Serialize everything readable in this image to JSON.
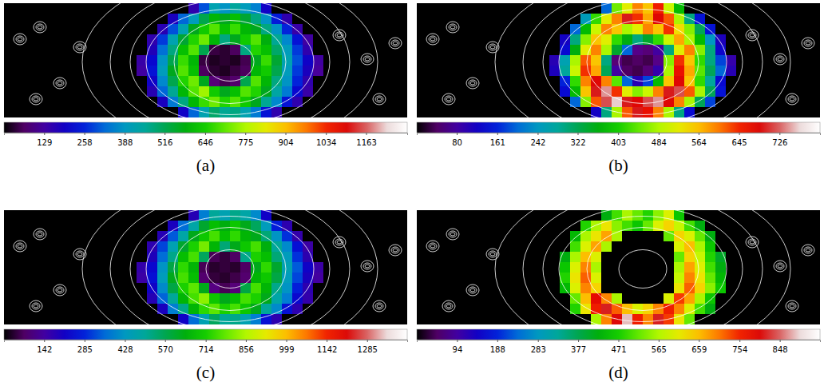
{
  "chart_data": [
    {
      "type": "heatmap",
      "title": "(a)",
      "color_range": [
        0,
        1295
      ],
      "color_ticks": [
        129,
        258,
        388,
        516,
        646,
        775,
        904,
        1034,
        1163
      ],
      "cells": [
        [
          null,
          null,
          null,
          null,
          null,
          150,
          300,
          420,
          380,
          450,
          400,
          350,
          200,
          null,
          null,
          null,
          null,
          null
        ],
        [
          null,
          null,
          null,
          180,
          320,
          400,
          520,
          600,
          560,
          620,
          540,
          480,
          380,
          250,
          150,
          null,
          null,
          null
        ],
        [
          null,
          null,
          160,
          300,
          420,
          560,
          640,
          700,
          620,
          680,
          600,
          560,
          480,
          380,
          260,
          140,
          null,
          null
        ],
        [
          null,
          150,
          280,
          420,
          540,
          660,
          720,
          600,
          480,
          560,
          640,
          700,
          580,
          460,
          360,
          240,
          130,
          null
        ],
        [
          null,
          170,
          330,
          480,
          620,
          700,
          520,
          40,
          30,
          60,
          480,
          660,
          620,
          500,
          400,
          280,
          150,
          null
        ],
        [
          140,
          220,
          380,
          520,
          680,
          600,
          40,
          20,
          30,
          20,
          50,
          560,
          680,
          540,
          420,
          300,
          200,
          130
        ],
        [
          130,
          240,
          400,
          560,
          700,
          620,
          60,
          30,
          20,
          40,
          60,
          600,
          640,
          520,
          400,
          280,
          180,
          120
        ],
        [
          null,
          200,
          360,
          520,
          660,
          720,
          560,
          80,
          50,
          70,
          520,
          700,
          600,
          480,
          380,
          260,
          150,
          null
        ],
        [
          null,
          160,
          320,
          460,
          600,
          700,
          760,
          640,
          560,
          620,
          700,
          660,
          560,
          440,
          340,
          220,
          140,
          null
        ],
        [
          null,
          null,
          180,
          340,
          480,
          600,
          680,
          720,
          660,
          700,
          640,
          560,
          460,
          360,
          240,
          150,
          null,
          null
        ],
        [
          null,
          null,
          null,
          null,
          200,
          320,
          420,
          500,
          460,
          480,
          420,
          340,
          240,
          150,
          null,
          null,
          null,
          null
        ]
      ]
    },
    {
      "type": "heatmap",
      "title": "(b)",
      "color_range": [
        0,
        807
      ],
      "color_ticks": [
        80,
        161,
        242,
        322,
        403,
        484,
        564,
        645,
        726
      ],
      "cells": [
        [
          null,
          null,
          null,
          null,
          null,
          200,
          450,
          520,
          600,
          560,
          650,
          500,
          380,
          null,
          null,
          null,
          null,
          null
        ],
        [
          null,
          null,
          null,
          250,
          420,
          520,
          600,
          700,
          640,
          580,
          680,
          620,
          480,
          300,
          150,
          null,
          null,
          null
        ],
        [
          null,
          null,
          200,
          380,
          500,
          600,
          560,
          480,
          520,
          600,
          560,
          640,
          540,
          460,
          320,
          150,
          null,
          null
        ],
        [
          null,
          120,
          300,
          460,
          560,
          520,
          420,
          360,
          300,
          340,
          420,
          500,
          580,
          480,
          380,
          240,
          110,
          null
        ],
        [
          null,
          140,
          360,
          520,
          600,
          480,
          340,
          200,
          60,
          50,
          80,
          300,
          520,
          600,
          460,
          300,
          130,
          null
        ],
        [
          100,
          260,
          480,
          620,
          560,
          300,
          50,
          30,
          40,
          30,
          60,
          460,
          640,
          560,
          420,
          300,
          180,
          90
        ],
        [
          110,
          280,
          500,
          640,
          580,
          320,
          80,
          40,
          30,
          50,
          90,
          480,
          660,
          580,
          440,
          320,
          200,
          100
        ],
        [
          null,
          160,
          420,
          600,
          680,
          600,
          440,
          200,
          100,
          180,
          380,
          560,
          680,
          560,
          420,
          280,
          140,
          null
        ],
        [
          null,
          140,
          380,
          560,
          700,
          740,
          640,
          520,
          460,
          500,
          600,
          700,
          720,
          620,
          480,
          320,
          150,
          null
        ],
        [
          null,
          null,
          200,
          460,
          620,
          720,
          760,
          700,
          680,
          720,
          740,
          680,
          600,
          480,
          320,
          180,
          null,
          null
        ],
        [
          null,
          null,
          null,
          null,
          120,
          300,
          480,
          620,
          700,
          660,
          600,
          480,
          300,
          140,
          null,
          null,
          null,
          null
        ]
      ]
    },
    {
      "type": "heatmap",
      "title": "(c)",
      "color_range": [
        0,
        1427
      ],
      "color_ticks": [
        142,
        285,
        428,
        570,
        714,
        856,
        999,
        1142,
        1285
      ],
      "cells": [
        [
          null,
          null,
          null,
          null,
          null,
          180,
          380,
          500,
          460,
          520,
          480,
          400,
          220,
          null,
          null,
          null,
          null,
          null
        ],
        [
          null,
          null,
          null,
          200,
          360,
          480,
          600,
          680,
          640,
          700,
          620,
          560,
          440,
          280,
          170,
          null,
          null,
          null
        ],
        [
          null,
          null,
          180,
          340,
          480,
          620,
          700,
          760,
          680,
          740,
          660,
          620,
          540,
          420,
          300,
          160,
          null,
          null
        ],
        [
          null,
          170,
          320,
          460,
          600,
          720,
          800,
          660,
          540,
          620,
          700,
          760,
          640,
          500,
          400,
          260,
          150,
          null
        ],
        [
          null,
          190,
          360,
          520,
          680,
          760,
          560,
          60,
          40,
          70,
          520,
          720,
          680,
          540,
          440,
          300,
          170,
          null
        ],
        [
          160,
          240,
          420,
          580,
          740,
          660,
          60,
          30,
          40,
          30,
          70,
          620,
          740,
          600,
          460,
          340,
          220,
          150
        ],
        [
          150,
          260,
          440,
          620,
          760,
          680,
          80,
          40,
          30,
          50,
          80,
          660,
          700,
          580,
          440,
          320,
          200,
          140
        ],
        [
          null,
          220,
          400,
          580,
          720,
          780,
          620,
          100,
          60,
          90,
          580,
          760,
          660,
          520,
          420,
          280,
          170,
          null
        ],
        [
          null,
          180,
          350,
          500,
          660,
          760,
          820,
          700,
          620,
          680,
          760,
          720,
          620,
          480,
          380,
          240,
          160,
          null
        ],
        [
          null,
          null,
          200,
          380,
          520,
          660,
          740,
          780,
          720,
          760,
          700,
          620,
          500,
          400,
          260,
          170,
          null,
          null
        ],
        [
          null,
          null,
          null,
          null,
          220,
          360,
          460,
          560,
          500,
          520,
          460,
          380,
          260,
          170,
          null,
          null,
          null,
          null
        ]
      ]
    },
    {
      "type": "heatmap",
      "title": "(d)",
      "color_range": [
        0,
        942
      ],
      "color_ticks": [
        94,
        188,
        283,
        377,
        471,
        565,
        659,
        754,
        848
      ],
      "cells": [
        [
          null,
          null,
          null,
          null,
          null,
          420,
          500,
          560,
          520,
          480,
          540,
          600,
          460,
          null,
          null,
          null,
          null,
          null
        ],
        [
          null,
          null,
          null,
          480,
          560,
          620,
          540,
          500,
          460,
          520,
          600,
          640,
          580,
          500,
          420,
          null,
          null,
          null
        ],
        [
          null,
          null,
          440,
          560,
          620,
          680,
          560,
          null,
          null,
          null,
          null,
          520,
          640,
          600,
          520,
          420,
          null,
          null
        ],
        [
          null,
          null,
          500,
          600,
          680,
          560,
          null,
          null,
          null,
          null,
          null,
          null,
          600,
          660,
          560,
          460,
          null,
          null
        ],
        [
          null,
          420,
          560,
          660,
          600,
          null,
          null,
          null,
          null,
          null,
          null,
          null,
          520,
          640,
          580,
          480,
          400,
          null
        ],
        [
          null,
          460,
          600,
          700,
          560,
          null,
          null,
          null,
          null,
          null,
          null,
          null,
          560,
          680,
          600,
          500,
          420,
          null
        ],
        [
          null,
          480,
          620,
          720,
          600,
          null,
          null,
          null,
          null,
          null,
          null,
          null,
          580,
          700,
          620,
          520,
          440,
          null
        ],
        [
          null,
          440,
          600,
          700,
          640,
          null,
          null,
          null,
          null,
          null,
          null,
          null,
          620,
          720,
          640,
          540,
          460,
          null
        ],
        [
          null,
          null,
          520,
          660,
          780,
          700,
          560,
          null,
          null,
          null,
          null,
          600,
          740,
          680,
          560,
          460,
          null,
          null
        ],
        [
          null,
          null,
          480,
          620,
          760,
          820,
          720,
          660,
          600,
          640,
          700,
          760,
          700,
          600,
          500,
          420,
          null,
          null
        ],
        [
          null,
          null,
          null,
          null,
          560,
          700,
          800,
          880,
          760,
          700,
          820,
          740,
          620,
          520,
          null,
          null,
          null,
          null
        ]
      ]
    }
  ]
}
